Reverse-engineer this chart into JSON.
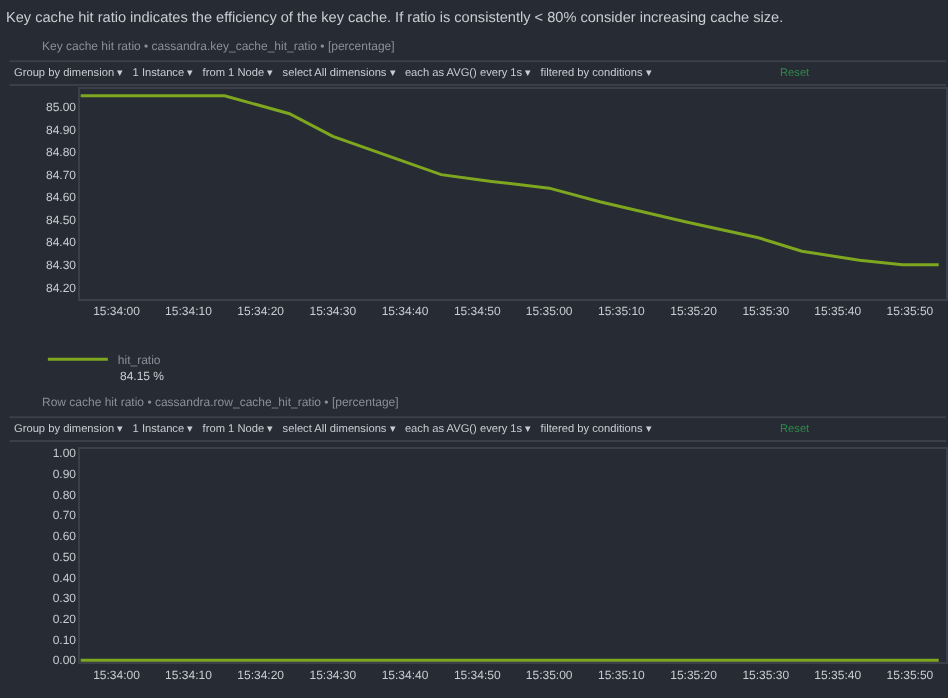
{
  "chart_data": [
    {
      "type": "line",
      "subtitle": "Key cache hit ratio indicates the efficiency of the key cache. If ratio is consistently < 80% consider increasing cache size.",
      "title": "Key cache hit ratio • cassandra.key_cache_hit_ratio • [percentage]",
      "annotations": [
        "Group by dimension ▾   1 Instance ▾   from 1 Node ▾   select All dimensions ▾   each as AVG() every 1s ▾   filtered by conditions ▾",
        "Reset",
        "84.15 %"
      ],
      "x": [
        15.56528,
        15.57083,
        15.57333,
        15.575,
        15.57917,
        15.58111,
        15.58333,
        15.58528,
        15.58861,
        15.59139,
        15.59306,
        15.59528,
        15.59694,
        15.59833
      ],
      "series": [
        {
          "name": "hit_ratio",
          "color": "#7ea71f",
          "values": [
            85.05,
            85.05,
            84.97,
            84.87,
            84.7,
            84.67,
            84.64,
            84.58,
            84.49,
            84.42,
            84.36,
            84.32,
            84.3,
            84.3
          ]
        }
      ],
      "xlim": [
        15.56528,
        15.59861
      ],
      "xticks": [
        {
          "value": 15.56667,
          "label": "15:34:00"
        },
        {
          "value": 15.56944,
          "label": "15:34:10"
        },
        {
          "value": 15.57222,
          "label": "15:34:20"
        },
        {
          "value": 15.575,
          "label": "15:34:30"
        },
        {
          "value": 15.57778,
          "label": "15:34:40"
        },
        {
          "value": 15.58056,
          "label": "15:34:50"
        },
        {
          "value": 15.58333,
          "label": "15:35:00"
        },
        {
          "value": 15.58611,
          "label": "15:35:10"
        },
        {
          "value": 15.58889,
          "label": "15:35:20"
        },
        {
          "value": 15.59167,
          "label": "15:35:30"
        },
        {
          "value": 15.59444,
          "label": "15:35:40"
        },
        {
          "value": 15.59722,
          "label": "15:35:50"
        }
      ],
      "ylim": [
        84.15,
        85.08
      ],
      "yticks": [
        {
          "value": 84.2,
          "label": "84.20"
        },
        {
          "value": 84.3,
          "label": "84.30"
        },
        {
          "value": 84.4,
          "label": "84.40"
        },
        {
          "value": 84.5,
          "label": "84.50"
        },
        {
          "value": 84.6,
          "label": "84.60"
        },
        {
          "value": 84.7,
          "label": "84.70"
        },
        {
          "value": 84.8,
          "label": "84.80"
        },
        {
          "value": 84.9,
          "label": "84.90"
        },
        {
          "value": 85.0,
          "label": "85.00"
        }
      ],
      "legend": "bottom left",
      "marker": "none"
    },
    {
      "type": "line",
      "title": "Row cache hit ratio • cassandra.row_cache_hit_ratio • [percentage]",
      "annotations": [
        "Group by dimension ▾   1 Instance ▾   from 1 Node ▾   select All dimensions ▾   each as AVG() every 1s ▾   filtered by conditions ▾",
        "Reset"
      ],
      "x": [
        15.56528,
        15.57083,
        15.57333,
        15.575,
        15.57917,
        15.58111,
        15.58333,
        15.58528,
        15.58861,
        15.59139,
        15.59306,
        15.59528,
        15.59694,
        15.59833
      ],
      "series": [
        {
          "color": "#7ea71f",
          "values": [
            0,
            0,
            0,
            0,
            0,
            0,
            0,
            0,
            0,
            0,
            0,
            0,
            0,
            0
          ]
        }
      ],
      "xlim": [
        15.56528,
        15.59861
      ],
      "xticks": [
        {
          "value": 15.56667,
          "label": "15:34:00"
        },
        {
          "value": 15.56944,
          "label": "15:34:10"
        },
        {
          "value": 15.57222,
          "label": "15:34:20"
        },
        {
          "value": 15.575,
          "label": "15:34:30"
        },
        {
          "value": 15.57778,
          "label": "15:34:40"
        },
        {
          "value": 15.58056,
          "label": "15:34:50"
        },
        {
          "value": 15.58333,
          "label": "15:35:00"
        },
        {
          "value": 15.58611,
          "label": "15:35:10"
        },
        {
          "value": 15.58889,
          "label": "15:35:20"
        },
        {
          "value": 15.59167,
          "label": "15:35:30"
        },
        {
          "value": 15.59444,
          "label": "15:35:40"
        },
        {
          "value": 15.59722,
          "label": "15:35:50"
        }
      ],
      "ylim": [
        -0.01,
        1.02
      ],
      "yticks": [
        {
          "value": 0,
          "label": "0.00"
        },
        {
          "value": 0.1,
          "label": "0.10"
        },
        {
          "value": 0.2,
          "label": "0.20"
        },
        {
          "value": 0.3,
          "label": "0.30"
        },
        {
          "value": 0.4,
          "label": "0.40"
        },
        {
          "value": 0.5,
          "label": "0.50"
        },
        {
          "value": 0.6,
          "label": "0.60"
        },
        {
          "value": 0.7,
          "label": "0.70"
        },
        {
          "value": 0.8,
          "label": "0.80"
        },
        {
          "value": 0.9,
          "label": "0.90"
        },
        {
          "value": 1.0,
          "label": "1.00"
        }
      ],
      "marker": "none"
    }
  ]
}
